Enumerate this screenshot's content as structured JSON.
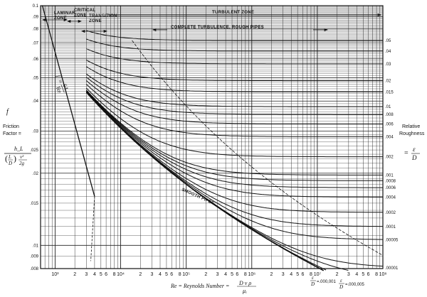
{
  "chart_data": {
    "type": "line",
    "title": "",
    "x_scale": "log",
    "y_scale": "log",
    "xlim": [
      600,
      100000000
    ],
    "ylim": [
      0.008,
      0.1
    ],
    "grid": true,
    "y_ticks": [
      {
        "value": 0.1,
        "label": "0.1"
      },
      {
        "value": 0.09,
        "label": ".09"
      },
      {
        "value": 0.08,
        "label": ".08"
      },
      {
        "value": 0.07,
        "label": ".07"
      },
      {
        "value": 0.06,
        "label": ".06"
      },
      {
        "value": 0.05,
        "label": ".05"
      },
      {
        "value": 0.04,
        "label": ".04"
      },
      {
        "value": 0.03,
        "label": ".03"
      },
      {
        "value": 0.025,
        "label": ".025"
      },
      {
        "value": 0.02,
        "label": ".02"
      },
      {
        "value": 0.015,
        "label": ".015"
      },
      {
        "value": 0.01,
        "label": ".01"
      },
      {
        "value": 0.009,
        "label": ".009"
      },
      {
        "value": 0.008,
        "label": ".008"
      }
    ],
    "x_ticks": [
      {
        "value": 1000,
        "label": "10³"
      },
      {
        "value": 2000,
        "label": "2"
      },
      {
        "value": 3000,
        "label": "3"
      },
      {
        "value": 4000,
        "label": "4"
      },
      {
        "value": 5000,
        "label": "5"
      },
      {
        "value": 6000,
        "label": "6"
      },
      {
        "value": 8000,
        "label": "8"
      },
      {
        "value": 10000,
        "label": "10⁴"
      },
      {
        "value": 20000,
        "label": "2"
      },
      {
        "value": 30000,
        "label": "3"
      },
      {
        "value": 40000,
        "label": "4"
      },
      {
        "value": 50000,
        "label": "5"
      },
      {
        "value": 60000,
        "label": "6"
      },
      {
        "value": 80000,
        "label": "8"
      },
      {
        "value": 100000,
        "label": "10⁵"
      },
      {
        "value": 200000,
        "label": "2"
      },
      {
        "value": 300000,
        "label": "3"
      },
      {
        "value": 400000,
        "label": "4"
      },
      {
        "value": 500000,
        "label": "5"
      },
      {
        "value": 600000,
        "label": "6"
      },
      {
        "value": 800000,
        "label": "8"
      },
      {
        "value": 1000000,
        "label": "10⁶"
      },
      {
        "value": 2000000,
        "label": "2"
      },
      {
        "value": 3000000,
        "label": "3"
      },
      {
        "value": 4000000,
        "label": "4"
      },
      {
        "value": 5000000,
        "label": "5"
      },
      {
        "value": 6000000,
        "label": "6"
      },
      {
        "value": 8000000,
        "label": "8"
      },
      {
        "value": 10000000,
        "label": "10⁷"
      },
      {
        "value": 20000000,
        "label": "2"
      },
      {
        "value": 30000000,
        "label": "3"
      },
      {
        "value": 40000000,
        "label": "4"
      },
      {
        "value": 50000000,
        "label": "5"
      },
      {
        "value": 60000000,
        "label": "6"
      },
      {
        "value": 80000000,
        "label": "8"
      },
      {
        "value": 100000000,
        "label": "10⁸"
      }
    ],
    "relative_roughness_ticks": [
      {
        "value": 0.05,
        "label": ".05"
      },
      {
        "value": 0.04,
        "label": ".04"
      },
      {
        "value": 0.03,
        "label": ".03"
      },
      {
        "value": 0.02,
        "label": ".02"
      },
      {
        "value": 0.015,
        "label": ".015"
      },
      {
        "value": 0.01,
        "label": ".01"
      },
      {
        "value": 0.008,
        "label": ".008"
      },
      {
        "value": 0.006,
        "label": ".006"
      },
      {
        "value": 0.004,
        "label": ".004"
      },
      {
        "value": 0.002,
        "label": ".002"
      },
      {
        "value": 0.001,
        "label": ".001"
      },
      {
        "value": 0.0008,
        "label": ".0008"
      },
      {
        "value": 0.0006,
        "label": ".0006"
      },
      {
        "value": 0.0004,
        "label": ".0004"
      },
      {
        "value": 0.0002,
        "label": ".0002"
      },
      {
        "value": 0.0001,
        "label": ".0001"
      },
      {
        "value": 5e-05,
        "label": ".00005"
      },
      {
        "value": 1e-05,
        "label": ".00001"
      }
    ],
    "roughness_curves": [
      0.05,
      0.04,
      0.03,
      0.02,
      0.015,
      0.01,
      0.008,
      0.006,
      0.004,
      0.002,
      0.001,
      0.0008,
      0.0006,
      0.0004,
      0.0002,
      0.0001,
      5e-05,
      1e-05,
      5e-06,
      1e-06
    ],
    "smooth_pipe": true,
    "laminar": {
      "equation": "f = 64 / Re",
      "re_range": [
        640,
        4000
      ]
    },
    "annotations": {
      "laminar_zone": "LAMINAR\nZONE",
      "critical_zone": "CRITICAL\nZONE",
      "transition_zone": "TRANSITION\nZONE",
      "turbulent_zone": "TURBULENT ZONE",
      "complete_turbulence": "COMPLETE TURBULENCE, ROUGH PIPES",
      "smooth_pipes": "SMOOTH PIPES",
      "laminar_eq_f": "f",
      "laminar_eq_64": "64",
      "laminar_eq_re": "Re"
    },
    "labels": {
      "ylabel_f": "f",
      "ylabel_friction": "Friction",
      "ylabel_factor": "Factor =",
      "ylabel_num": "h_L",
      "ylabel_den_l": "L",
      "ylabel_den_d": "D",
      "ylabel_den_v": "v²",
      "ylabel_den_2g": "2g",
      "right_rel": "Relative",
      "right_rough": "Roughness",
      "right_eq": "=",
      "right_eps": "ε",
      "right_d": "D",
      "xlabel_prefix": "Re = Reynolds Number =",
      "xlabel_num": "D v ρ",
      "xlabel_den": "μₑ",
      "bottom_eps1": "ε",
      "bottom_d1": "D",
      "bottom_val1": "=.000,001",
      "bottom_eps2": "ε",
      "bottom_d2": "D",
      "bottom_val2": "=.000,005"
    }
  }
}
